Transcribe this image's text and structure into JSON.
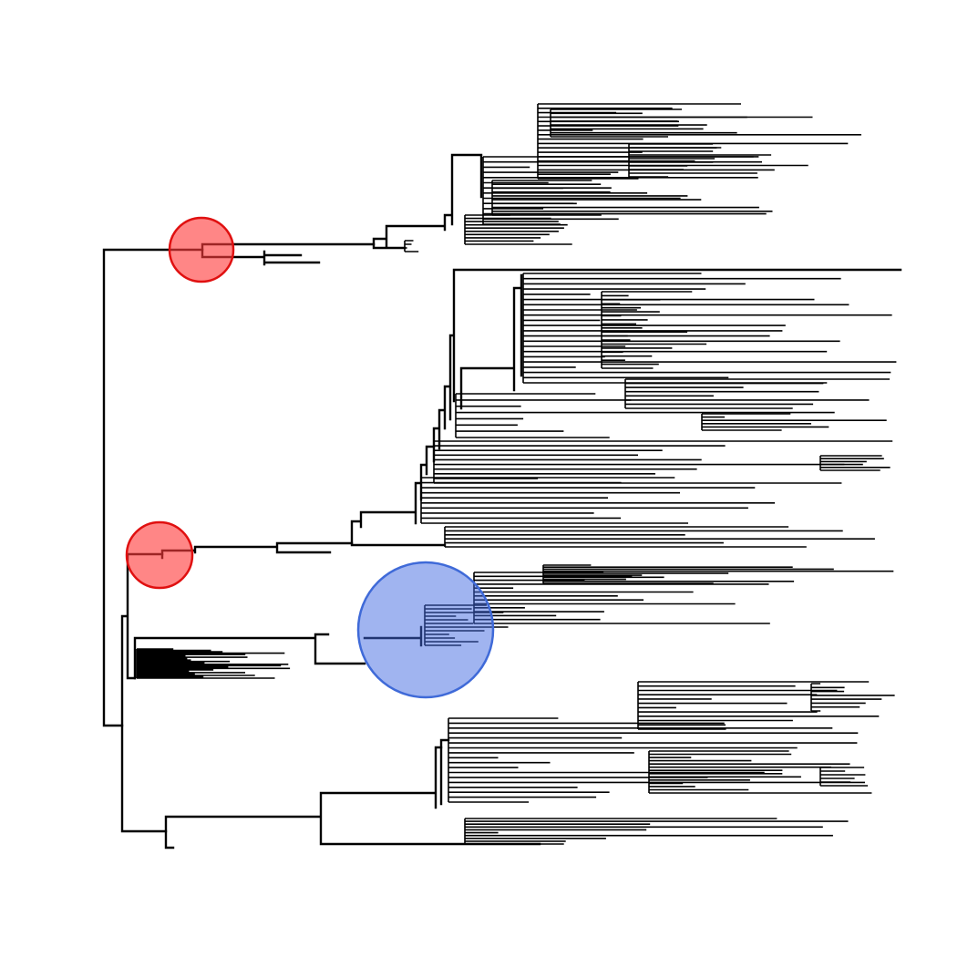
{
  "figure": {
    "type": "phylogenetic-tree",
    "orientation": "left-to-right",
    "branch_color": "#000000",
    "background": "#ffffff",
    "tip_labels_shown": false
  },
  "clades": [
    {
      "name": "top-clade"
    },
    {
      "name": "middle-clade"
    },
    {
      "name": "comb-clade"
    },
    {
      "name": "bottom-clade"
    }
  ],
  "markers": [
    {
      "name": "node-marker-1",
      "color": "#ff6b6b",
      "stroke": "#e01010",
      "size": "small"
    },
    {
      "name": "node-marker-2",
      "color": "#ff6b6b",
      "stroke": "#e01010",
      "size": "small"
    },
    {
      "name": "node-marker-3",
      "color": "#8ea8ec",
      "stroke": "#3f6ad8",
      "size": "large"
    }
  ]
}
